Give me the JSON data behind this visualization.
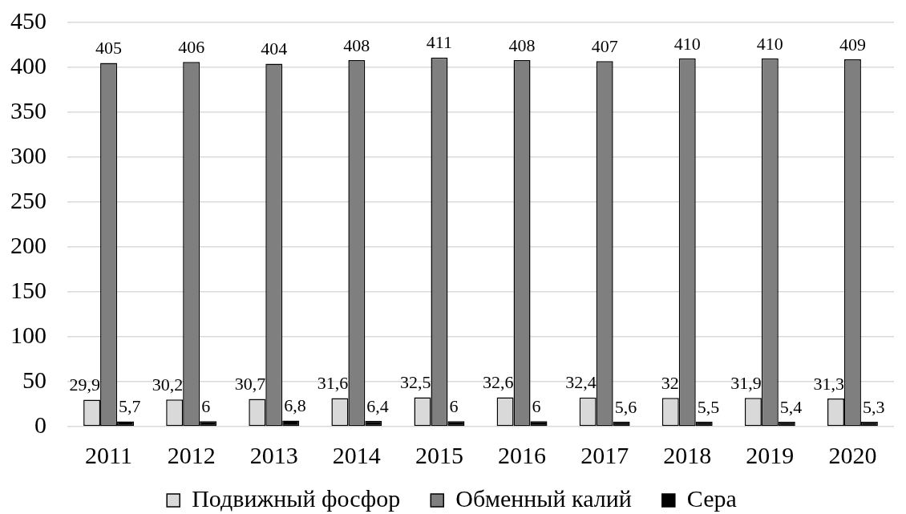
{
  "chart_data": {
    "type": "bar",
    "categories": [
      "2011",
      "2012",
      "2013",
      "2014",
      "2015",
      "2016",
      "2017",
      "2018",
      "2019",
      "2020"
    ],
    "series": [
      {
        "name": "Подвижный фосфор",
        "color": "#d9d9d9",
        "values": [
          29.9,
          30.2,
          30.7,
          31.6,
          32.5,
          32.6,
          32.4,
          32,
          31.9,
          31.3
        ],
        "value_labels": [
          "29,9",
          "30,2",
          "30,7",
          "31,6",
          "32,5",
          "32,6",
          "32,4",
          "32",
          "31,9",
          "31,3"
        ]
      },
      {
        "name": "Обменный калий",
        "color": "#7f7f7f",
        "values": [
          405,
          406,
          404,
          408,
          411,
          408,
          407,
          410,
          410,
          409
        ],
        "value_labels": [
          "405",
          "406",
          "404",
          "408",
          "411",
          "408",
          "407",
          "410",
          "410",
          "409"
        ]
      },
      {
        "name": "Сера",
        "color": "#000000",
        "values": [
          5.7,
          6,
          6.8,
          6.4,
          6,
          6,
          5.6,
          5.5,
          5.4,
          5.3
        ],
        "value_labels": [
          "5,7",
          "6",
          "6,8",
          "6,4",
          "6",
          "6",
          "5,6",
          "5,5",
          "5,4",
          "5,3"
        ]
      }
    ],
    "ylim": [
      0,
      450
    ],
    "yticks": [
      0,
      50,
      100,
      150,
      200,
      250,
      300,
      350,
      400,
      450
    ],
    "grid": "y",
    "legend": "bottom"
  }
}
